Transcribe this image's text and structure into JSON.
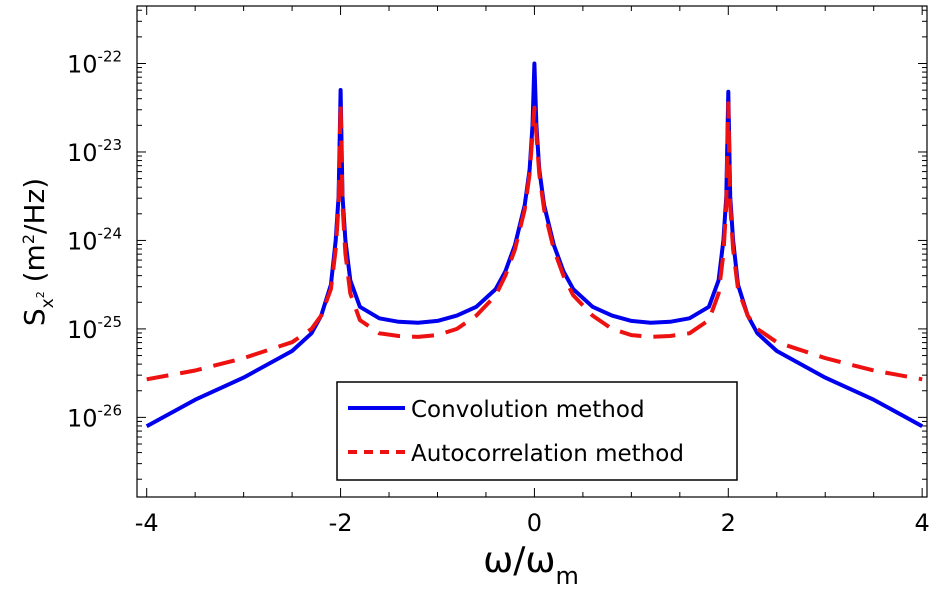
{
  "chart_data": {
    "type": "line",
    "xlabel": {
      "base": "ω/ω",
      "sub": "m"
    },
    "ylabel": {
      "base": "S",
      "sub": "x",
      "sub_sup": "2",
      "unit_pre": " (m",
      "unit_sup": "2",
      "unit_post": "/Hz)"
    },
    "xlim": [
      -4.1,
      4.05
    ],
    "ylim": [
      -26.9,
      -21.35
    ],
    "yscale": "log",
    "x_ticks": [
      {
        "value": -4,
        "label": "-4"
      },
      {
        "value": -2,
        "label": "-2"
      },
      {
        "value": 0,
        "label": "0"
      },
      {
        "value": 2,
        "label": "2"
      },
      {
        "value": 4,
        "label": "4"
      }
    ],
    "y_ticks": [
      {
        "exp": -26,
        "base": "10",
        "sup": "-26"
      },
      {
        "exp": -25,
        "base": "10",
        "sup": "-25"
      },
      {
        "exp": -24,
        "base": "10",
        "sup": "-24"
      },
      {
        "exp": -23,
        "base": "10",
        "sup": "-23"
      },
      {
        "exp": -22,
        "base": "10",
        "sup": "-22"
      }
    ],
    "legend_position": "bottom-center",
    "series": [
      {
        "name": "Convolution method",
        "color": "#0000ee",
        "style": "solid",
        "x": [
          -4,
          -3.5,
          -3,
          -2.5,
          -2.3,
          -2.2,
          -2.1,
          -2.05,
          -2.02,
          -2,
          -1.98,
          -1.95,
          -1.9,
          -1.8,
          -1.6,
          -1.4,
          -1.2,
          -1,
          -0.8,
          -0.6,
          -0.4,
          -0.3,
          -0.2,
          -0.1,
          -0.05,
          -0.02,
          0,
          0.02,
          0.05,
          0.1,
          0.2,
          0.3,
          0.4,
          0.6,
          0.8,
          1,
          1.2,
          1.4,
          1.6,
          1.8,
          1.9,
          1.95,
          1.98,
          2,
          2.02,
          2.05,
          2.1,
          2.2,
          2.3,
          2.5,
          3,
          3.5,
          4
        ],
        "values_log10": [
          -26.1,
          -25.8,
          -25.55,
          -25.25,
          -25.05,
          -24.85,
          -24.5,
          -24.0,
          -23.5,
          -22.3,
          -23.5,
          -24.0,
          -24.45,
          -24.75,
          -24.88,
          -24.92,
          -24.93,
          -24.91,
          -24.85,
          -24.75,
          -24.55,
          -24.35,
          -24.05,
          -23.6,
          -23.2,
          -22.7,
          -22.0,
          -22.7,
          -23.2,
          -23.6,
          -24.05,
          -24.35,
          -24.55,
          -24.75,
          -24.85,
          -24.91,
          -24.93,
          -24.92,
          -24.88,
          -24.75,
          -24.45,
          -24.0,
          -23.5,
          -22.32,
          -23.5,
          -24.0,
          -24.5,
          -24.85,
          -25.05,
          -25.25,
          -25.55,
          -25.8,
          -26.1
        ]
      },
      {
        "name": "Autocorrelation method",
        "color": "#ee1111",
        "style": "dashed",
        "x": [
          -4,
          -3.5,
          -3,
          -2.5,
          -2.3,
          -2.2,
          -2.1,
          -2.05,
          -2.02,
          -2,
          -1.98,
          -1.95,
          -1.9,
          -1.8,
          -1.6,
          -1.4,
          -1.2,
          -1,
          -0.8,
          -0.6,
          -0.4,
          -0.3,
          -0.2,
          -0.1,
          -0.05,
          -0.02,
          0,
          0.02,
          0.05,
          0.1,
          0.2,
          0.3,
          0.4,
          0.6,
          0.8,
          1,
          1.2,
          1.4,
          1.6,
          1.8,
          1.9,
          1.95,
          1.98,
          2,
          2.02,
          2.05,
          2.1,
          2.2,
          2.3,
          2.5,
          3,
          3.5,
          4
        ],
        "values_log10": [
          -25.57,
          -25.47,
          -25.33,
          -25.15,
          -25.0,
          -24.85,
          -24.55,
          -24.1,
          -23.6,
          -22.45,
          -23.6,
          -24.15,
          -24.6,
          -24.9,
          -25.05,
          -25.08,
          -25.09,
          -25.07,
          -25.0,
          -24.85,
          -24.62,
          -24.4,
          -24.1,
          -23.65,
          -23.25,
          -22.8,
          -22.5,
          -22.8,
          -23.25,
          -23.65,
          -24.1,
          -24.4,
          -24.62,
          -24.85,
          -25.0,
          -25.07,
          -25.09,
          -25.08,
          -25.05,
          -24.9,
          -24.6,
          -24.15,
          -23.6,
          -22.45,
          -23.6,
          -24.1,
          -24.55,
          -24.85,
          -25.0,
          -25.15,
          -25.33,
          -25.47,
          -25.57
        ]
      }
    ]
  }
}
